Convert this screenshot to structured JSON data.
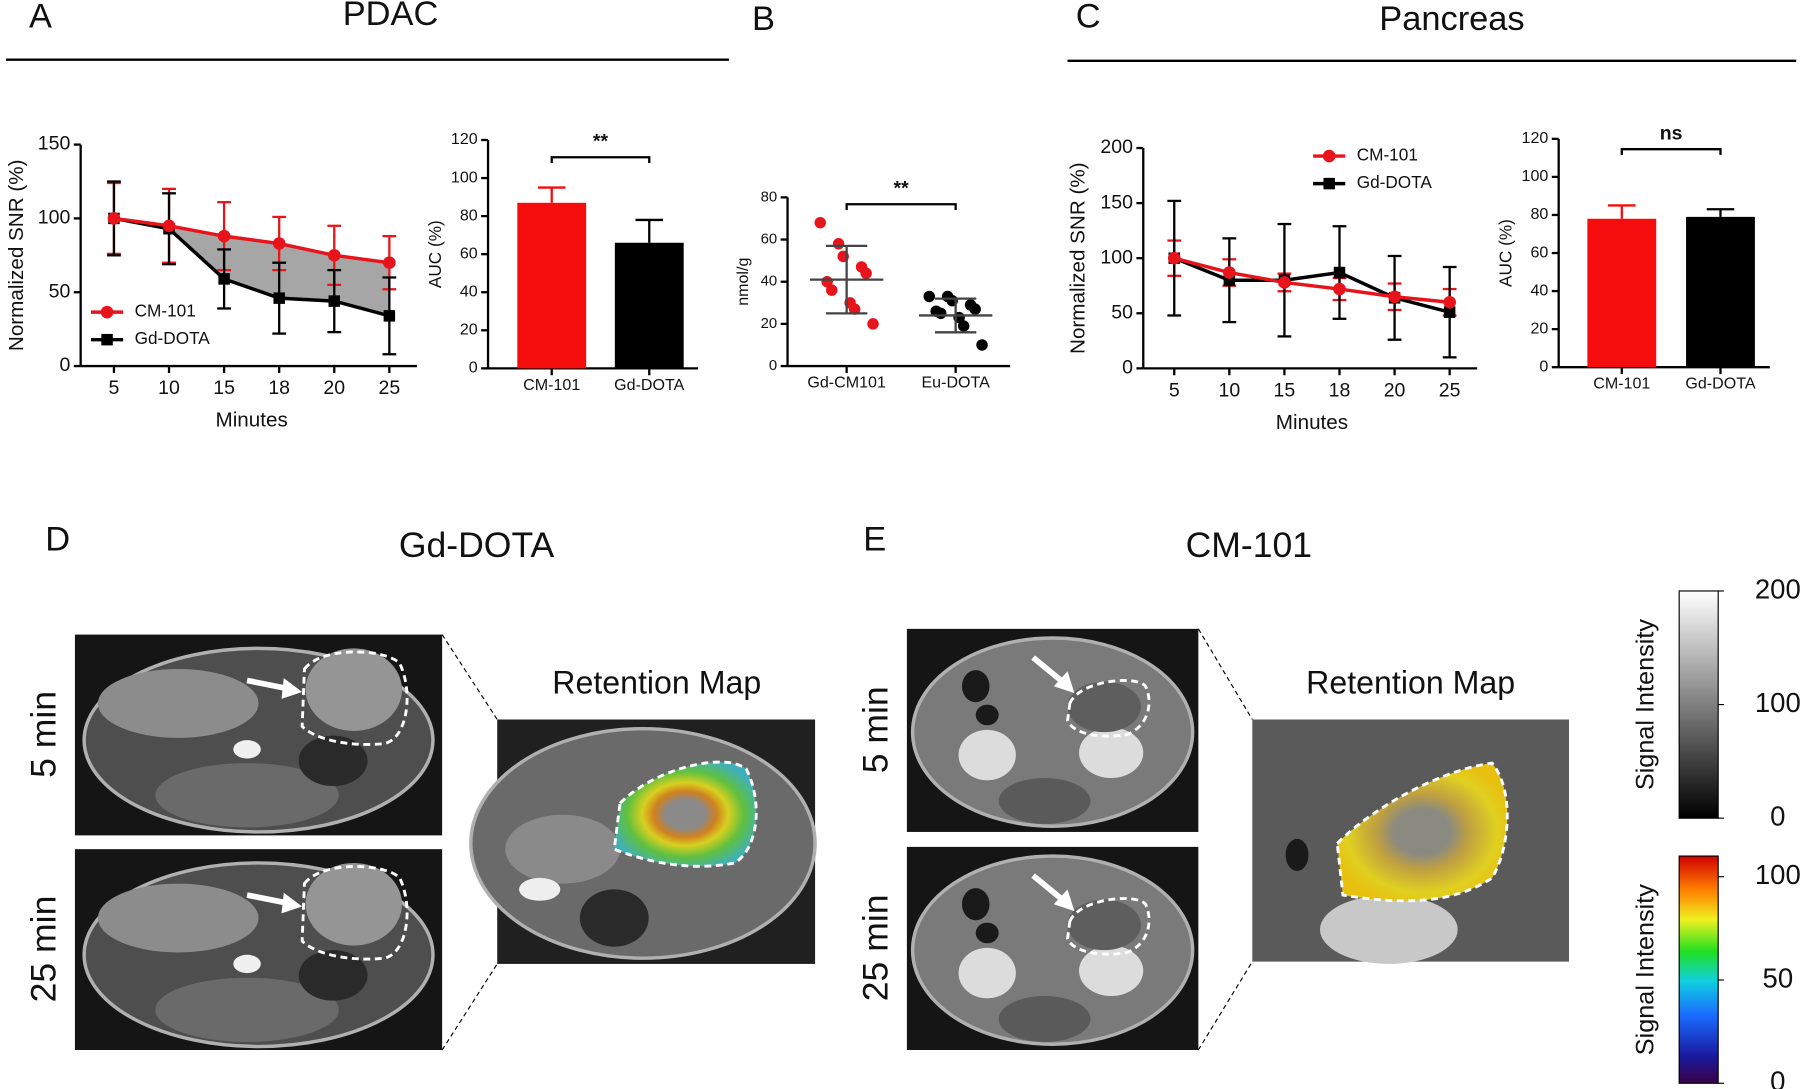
{
  "figure": {
    "panel_a": "A",
    "panel_a_title": "PDAC",
    "panel_b": "B",
    "panel_c": "C",
    "panel_c_title": "Pancreas",
    "panel_d": "D",
    "panel_d_title": "Gd-DOTA",
    "panel_e": "E",
    "panel_e_title": "CM-101",
    "time_early": "5 min",
    "time_late": "25 min",
    "retention_map": "Retention Map"
  },
  "chart_data": [
    {
      "type": "line",
      "xlabel": "Minutes",
      "ylabel": "Normalized SNR (%)",
      "categories": [
        "5",
        "10",
        "15",
        "18",
        "20",
        "25"
      ],
      "ylim": [
        0,
        150
      ],
      "yticks": [
        0,
        50,
        100,
        150
      ],
      "legend": "lower left",
      "fill_between": "#a6a6a6",
      "series": [
        {
          "name": "CM-101",
          "color": "#e8141b",
          "marker": "circle",
          "values": [
            100,
            95,
            88,
            83,
            75,
            70
          ],
          "errors": [
            24,
            25,
            23,
            18,
            20,
            18
          ]
        },
        {
          "name": "Gd-DOTA",
          "color": "#000000",
          "marker": "square",
          "values": [
            100,
            93,
            59,
            46,
            44,
            34
          ],
          "errors": [
            25,
            24,
            20,
            24,
            21,
            26
          ]
        }
      ]
    },
    {
      "type": "bar",
      "ylabel": "AUC (%)",
      "categories": [
        "CM-101",
        "Gd-DOTA"
      ],
      "values": [
        87,
        66
      ],
      "errors": [
        8,
        12
      ],
      "colors": [
        "#f50d0d",
        "#000000"
      ],
      "ylim": [
        0,
        120
      ],
      "yticks": [
        0,
        20,
        40,
        60,
        80,
        100,
        120
      ],
      "annotation": "**"
    },
    {
      "type": "scatter",
      "ylabel": "nmol/g",
      "ylim": [
        0,
        80
      ],
      "yticks": [
        0,
        20,
        40,
        60,
        80
      ],
      "annotation": "**",
      "series": [
        {
          "name": "Gd-CM101",
          "color": "#e8141b",
          "values": [
            68,
            58,
            52,
            47,
            44,
            40,
            36,
            30,
            27,
            20
          ],
          "mean": 41,
          "sd": 16
        },
        {
          "name": "Eu-DOTA",
          "color": "#000000",
          "values": [
            33,
            33,
            31,
            29,
            27,
            26,
            25,
            23,
            19,
            10
          ],
          "mean": 24,
          "sd": 8
        }
      ]
    },
    {
      "type": "line",
      "xlabel": "Minutes",
      "ylabel": "Normalized SNR (%)",
      "categories": [
        "5",
        "10",
        "15",
        "18",
        "20",
        "25"
      ],
      "ylim": [
        0,
        200
      ],
      "yticks": [
        0,
        50,
        100,
        150,
        200
      ],
      "legend": "upper right",
      "series": [
        {
          "name": "CM-101",
          "color": "#e8141b",
          "marker": "circle",
          "values": [
            100,
            87,
            78,
            72,
            65,
            60
          ],
          "errors": [
            16,
            12,
            8,
            10,
            12,
            12
          ]
        },
        {
          "name": "Gd-DOTA",
          "color": "#000000",
          "marker": "square",
          "values": [
            100,
            80,
            80,
            87,
            64,
            51
          ],
          "errors": [
            52,
            38,
            51,
            42,
            38,
            41
          ]
        }
      ]
    },
    {
      "type": "bar",
      "ylabel": "AUC (%)",
      "categories": [
        "CM-101",
        "Gd-DOTA"
      ],
      "values": [
        78,
        79
      ],
      "errors": [
        7,
        4
      ],
      "colors": [
        "#f50d0d",
        "#000000"
      ],
      "ylim": [
        0,
        120
      ],
      "yticks": [
        0,
        20,
        40,
        60,
        80,
        100,
        120
      ],
      "annotation": "ns"
    },
    {
      "type": "colorbar",
      "label": "Signal Intensity",
      "colormap": "gray",
      "ylim": [
        0,
        200
      ],
      "yticks": [
        0,
        100,
        200
      ]
    },
    {
      "type": "colorbar",
      "label": "Signal Intensity",
      "colormap": "jet",
      "ylim": [
        0,
        110
      ],
      "yticks": [
        0,
        50,
        100
      ]
    }
  ]
}
